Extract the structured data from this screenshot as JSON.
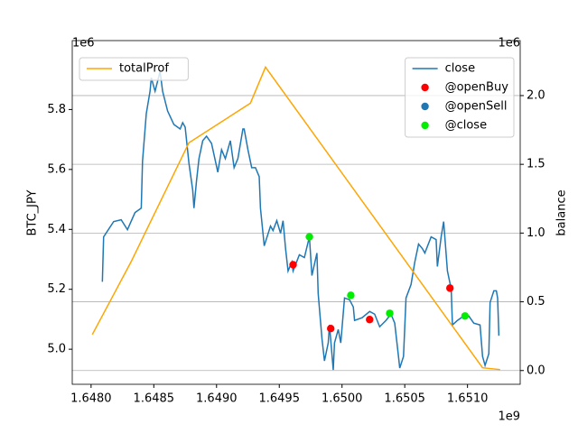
{
  "chart_data": {
    "type": "line",
    "x_offset_label": "1e9",
    "y_label": "BTC_JPY",
    "y_offset_label": "1e6",
    "y2_label": "balance",
    "y2_offset_label": "1e6",
    "xlim": [
      1.64785,
      1.65142
    ],
    "xticks": [
      {
        "value": 1.648,
        "label": "1.6480"
      },
      {
        "value": 1.6485,
        "label": "1.6485"
      },
      {
        "value": 1.649,
        "label": "1.6490"
      },
      {
        "value": 1.6495,
        "label": "1.6495"
      },
      {
        "value": 1.65,
        "label": "1.6500"
      },
      {
        "value": 1.6505,
        "label": "1.6505"
      },
      {
        "value": 1.651,
        "label": "1.6510"
      }
    ],
    "ylim": [
      4.883,
      6.03
    ],
    "yticks": [
      {
        "value": 5,
        "label": "5.0"
      },
      {
        "value": 5.2,
        "label": "5.2"
      },
      {
        "value": 5.4,
        "label": "5.4"
      },
      {
        "value": 5.6,
        "label": "5.6"
      },
      {
        "value": 5.8,
        "label": "5.8"
      }
    ],
    "y2lim": [
      -0.1,
      2.4
    ],
    "y2ticks": [
      {
        "value": 0,
        "label": "0.0"
      },
      {
        "value": 0.5,
        "label": "0.5"
      },
      {
        "value": 1,
        "label": "1.0"
      },
      {
        "value": 1.5,
        "label": "1.5"
      },
      {
        "value": 2,
        "label": "2.0"
      }
    ],
    "grid": "y2",
    "series": [
      {
        "name": "close",
        "kind": "line",
        "color": "#1f77b4",
        "legend": "upper right",
        "x": [
          1.64809,
          1.6481,
          1.64818,
          1.64824,
          1.64829,
          1.64835,
          1.6484,
          1.64841,
          1.64844,
          1.64847,
          1.64848,
          1.64851,
          1.64855,
          1.64857,
          1.64861,
          1.64866,
          1.64871,
          1.64873,
          1.64875,
          1.64878,
          1.64881,
          1.64882,
          1.64884,
          1.64886,
          1.64889,
          1.64892,
          1.64896,
          1.64901,
          1.64904,
          1.64907,
          1.64911,
          1.64914,
          1.64917,
          1.64921,
          1.64922,
          1.64925,
          1.64928,
          1.64931,
          1.64934,
          1.64935,
          1.64938,
          1.64943,
          1.64945,
          1.64948,
          1.64951,
          1.64953,
          1.64955,
          1.64957,
          1.6496,
          1.64961,
          1.64966,
          1.6497,
          1.64974,
          1.64976,
          1.6498,
          1.64981,
          1.64984,
          1.64986,
          1.64989,
          1.6499,
          1.64993,
          1.64994,
          1.64997,
          1.64999,
          1.65002,
          1.65006,
          1.65009,
          1.6501,
          1.65016,
          1.65022,
          1.65026,
          1.6503,
          1.65035,
          1.65039,
          1.65042,
          1.65045,
          1.65046,
          1.65049,
          1.65051,
          1.65055,
          1.65058,
          1.65061,
          1.65064,
          1.65066,
          1.65071,
          1.65075,
          1.65076,
          1.65079,
          1.65081,
          1.65084,
          1.65087,
          1.65088,
          1.65092,
          1.65097,
          1.65101,
          1.65105,
          1.6511,
          1.65112,
          1.65114,
          1.65117,
          1.65118,
          1.65121,
          1.65123,
          1.65124,
          1.65125
        ],
        "values": [
          5.225,
          5.375,
          5.426,
          5.432,
          5.399,
          5.456,
          5.471,
          5.627,
          5.786,
          5.861,
          5.906,
          5.861,
          5.927,
          5.861,
          5.795,
          5.75,
          5.735,
          5.756,
          5.741,
          5.621,
          5.531,
          5.471,
          5.561,
          5.636,
          5.696,
          5.711,
          5.687,
          5.591,
          5.666,
          5.636,
          5.696,
          5.606,
          5.636,
          5.735,
          5.735,
          5.666,
          5.606,
          5.606,
          5.576,
          5.471,
          5.345,
          5.411,
          5.396,
          5.429,
          5.387,
          5.429,
          5.336,
          5.261,
          5.291,
          5.261,
          5.315,
          5.306,
          5.375,
          5.246,
          5.321,
          5.186,
          5.036,
          4.961,
          5.021,
          5.081,
          4.931,
          5.021,
          5.066,
          5.021,
          5.171,
          5.165,
          5.141,
          5.096,
          5.105,
          5.126,
          5.117,
          5.075,
          5.096,
          5.117,
          5.087,
          4.976,
          4.937,
          4.976,
          5.171,
          5.216,
          5.291,
          5.351,
          5.336,
          5.321,
          5.375,
          5.366,
          5.276,
          5.375,
          5.426,
          5.261,
          5.201,
          5.081,
          5.096,
          5.111,
          5.111,
          5.087,
          5.081,
          4.976,
          4.946,
          4.985,
          5.156,
          5.195,
          5.195,
          5.171,
          5.045
        ]
      },
      {
        "name": "@openBuy",
        "kind": "scatter",
        "color": "#ff0000",
        "legend": "upper right",
        "x": [
          1.64961,
          1.64991,
          1.65022,
          1.65086
        ],
        "values": [
          5.282,
          5.069,
          5.099,
          5.204
        ]
      },
      {
        "name": "@openSell",
        "kind": "scatter",
        "color": "#1f77b4",
        "legend": "upper right",
        "x": [],
        "values": []
      },
      {
        "name": "@close",
        "kind": "scatter",
        "color": "#00ee00",
        "legend": "upper right",
        "x": [
          1.64974,
          1.65007,
          1.65038,
          1.65098
        ],
        "values": [
          5.375,
          5.18,
          5.12,
          5.111
        ]
      },
      {
        "name": "totalProf",
        "kind": "line",
        "color": "#ffa500",
        "axis": "y2",
        "legend": "upper left",
        "x": [
          1.64801,
          1.64832,
          1.64878,
          1.64927,
          1.64939,
          1.65112,
          1.65126
        ],
        "values": [
          0.262,
          0.793,
          1.657,
          1.945,
          2.207,
          0.02,
          0.007
        ]
      }
    ]
  }
}
